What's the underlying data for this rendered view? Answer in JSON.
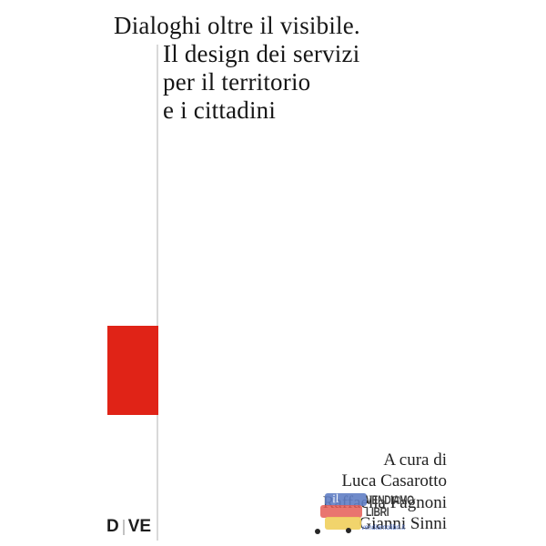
{
  "page": {
    "background": "#ffffff"
  },
  "cover": {
    "title": {
      "line1": "Dialoghi oltre il visibile.",
      "line2": "Il design dei servizi",
      "line3": "per il territorio",
      "line4": "e i cittadini"
    },
    "credits": {
      "curated_by": "A cura di",
      "author1": "Luca Casarotto",
      "author2": "Raffaella Fagnoni",
      "author3": "Gianni Sinni"
    },
    "publisher": {
      "left": "D",
      "right": "VE"
    },
    "colors": {
      "accent_red": "#e02317",
      "rule_gray": "#d9d9d9",
      "title_text": "#161616"
    }
  },
  "watermark": {
    "word1": "VENDIAMO",
    "word2": "LIBRI",
    "small_text": "vendiamolibri.it",
    "script_mark": "il",
    "logo_colors": {
      "blue": "#617ec4",
      "red": "#e55d56",
      "yellow": "#f0d05f",
      "wheel_black": "#262626"
    }
  }
}
